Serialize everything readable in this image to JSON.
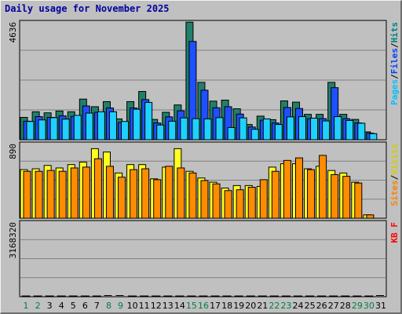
{
  "title": "Daily usage for November 2025",
  "chart_data": [
    {
      "type": "bar",
      "panel": "top",
      "ymax_label": "4636",
      "ylim": [
        0,
        4636
      ],
      "legend": [
        {
          "name": "Pages",
          "color": "#00c0ff"
        },
        {
          "sep": "/"
        },
        {
          "name": "Files",
          "color": "#0040ff"
        },
        {
          "sep": "/"
        },
        {
          "name": "Hits",
          "color": "#008080"
        }
      ],
      "categories": [
        "1",
        "2",
        "3",
        "4",
        "5",
        "6",
        "7",
        "8",
        "9",
        "10",
        "11",
        "12",
        "13",
        "14",
        "15",
        "16",
        "17",
        "18",
        "19",
        "20",
        "21",
        "22",
        "23",
        "24",
        "25",
        "26",
        "27",
        "28",
        "29",
        "30",
        "31"
      ],
      "series": [
        {
          "name": "Hits",
          "color": "#20806a",
          "values": [
            880,
            1100,
            1060,
            1130,
            1100,
            1600,
            1300,
            1500,
            820,
            1500,
            1900,
            800,
            1080,
            1370,
            4630,
            2260,
            1520,
            1560,
            1220,
            600,
            930,
            790,
            1530,
            1480,
            1000,
            1000,
            2260,
            1000,
            800,
            310,
            0
          ]
        },
        {
          "name": "Files",
          "color": "#1e50ff",
          "values": [
            730,
            910,
            880,
            940,
            920,
            1330,
            1080,
            1250,
            680,
            1250,
            1580,
            660,
            900,
            1140,
            3870,
            1950,
            1260,
            1300,
            1010,
            500,
            770,
            660,
            1270,
            1230,
            830,
            830,
            2050,
            830,
            660,
            260,
            0
          ]
        },
        {
          "name": "Pages",
          "color": "#20d0ff",
          "values": [
            720,
            780,
            870,
            810,
            960,
            1050,
            1100,
            1100,
            720,
            1200,
            1470,
            580,
            730,
            860,
            830,
            820,
            870,
            480,
            860,
            410,
            820,
            600,
            900,
            910,
            850,
            740,
            910,
            760,
            650,
            240,
            0
          ]
        }
      ]
    },
    {
      "type": "bar",
      "panel": "middle",
      "ymax_label": "890",
      "ylim": [
        0,
        890
      ],
      "legend": [
        {
          "name": "Sites",
          "color": "#ff8000"
        },
        {
          "sep": "/"
        },
        {
          "name": "Visits",
          "color": "#d0d000"
        }
      ],
      "categories": [
        "1",
        "2",
        "3",
        "4",
        "5",
        "6",
        "7",
        "8",
        "9",
        "10",
        "11",
        "12",
        "13",
        "14",
        "15",
        "16",
        "17",
        "18",
        "19",
        "20",
        "21",
        "22",
        "23",
        "24",
        "25",
        "26",
        "27",
        "28",
        "29",
        "30",
        "31"
      ],
      "series": [
        {
          "name": "Visits",
          "color": "#ffff20",
          "values": [
            580,
            590,
            630,
            600,
            640,
            670,
            830,
            790,
            540,
            640,
            640,
            470,
            610,
            830,
            560,
            480,
            430,
            360,
            390,
            390,
            380,
            610,
            650,
            650,
            590,
            620,
            570,
            540,
            430,
            40,
            0
          ]
        },
        {
          "name": "Sites",
          "color": "#ff8c00",
          "values": [
            560,
            560,
            570,
            560,
            600,
            610,
            710,
            620,
            490,
            580,
            590,
            460,
            620,
            600,
            540,
            450,
            410,
            330,
            340,
            370,
            460,
            560,
            690,
            720,
            580,
            750,
            520,
            500,
            420,
            40,
            0
          ]
        }
      ]
    },
    {
      "type": "bar",
      "panel": "bottom",
      "ymax_label": "3168320",
      "ylim": [
        0,
        3168320
      ],
      "legend": [
        {
          "name": "KB F",
          "color": "#ff0000"
        }
      ],
      "categories": [
        "1",
        "2",
        "3",
        "4",
        "5",
        "6",
        "7",
        "8",
        "9",
        "10",
        "11",
        "12",
        "13",
        "14",
        "15",
        "16",
        "17",
        "18",
        "19",
        "20",
        "21",
        "22",
        "23",
        "24",
        "25",
        "26",
        "27",
        "28",
        "29",
        "30",
        "31"
      ],
      "series": [
        {
          "name": "KB F",
          "color": "#ff2020",
          "values": [
            1090,
            2040,
            830,
            1380,
            830,
            2950,
            1280,
            0,
            0,
            360,
            3110,
            420,
            1040,
            550,
            2840,
            880,
            580,
            1280,
            600,
            780,
            780,
            450,
            720,
            1120,
            590,
            550,
            1600,
            1280,
            1080,
            170,
            0
          ]
        }
      ]
    }
  ],
  "xaxis": {
    "labels": [
      "1",
      "2",
      "3",
      "4",
      "5",
      "6",
      "7",
      "8",
      "9",
      "10",
      "11",
      "12",
      "13",
      "14",
      "15",
      "16",
      "17",
      "18",
      "19",
      "20",
      "21",
      "22",
      "23",
      "24",
      "25",
      "26",
      "27",
      "28",
      "29",
      "30",
      "31"
    ],
    "weekend_color": "#008040",
    "weekday_color": "#000000",
    "weekend_days": [
      "1",
      "2",
      "8",
      "9",
      "15",
      "16",
      "22",
      "23",
      "29",
      "30"
    ]
  }
}
